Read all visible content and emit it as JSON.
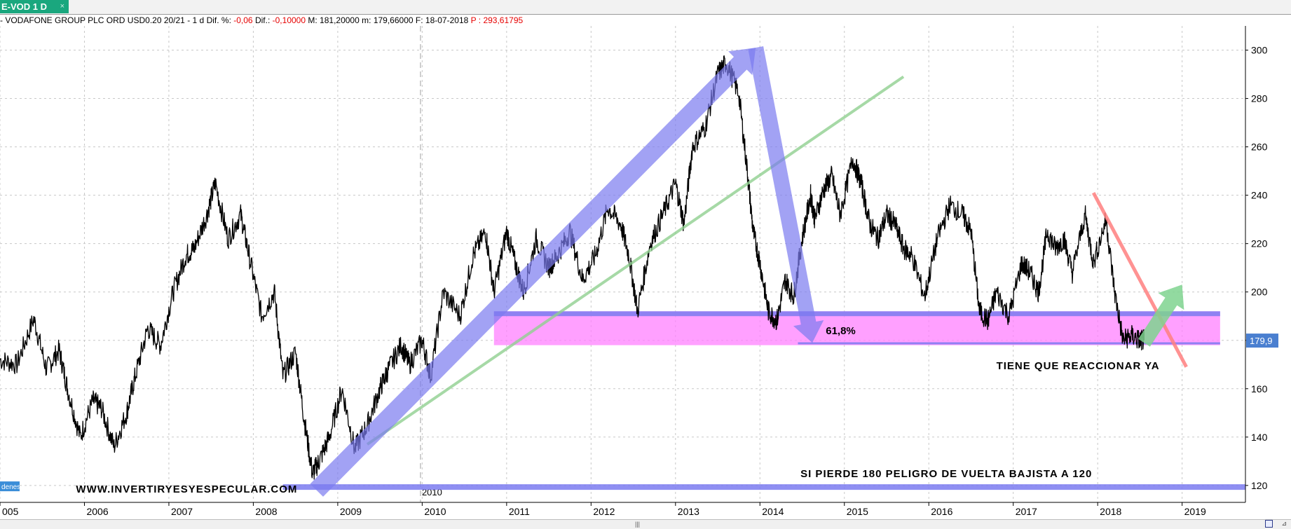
{
  "tab": {
    "label": "E-VOD 1 D",
    "close_glyph": "×"
  },
  "info": {
    "prefix": "- VODAFONE GROUP PLC ORD USD0.20 20/21 -  1 d",
    "dif_pct_label": "Dif. %:",
    "dif_pct_value": "-0,06",
    "dif_label": "Dif.:",
    "dif_value": "-0,10000",
    "max_label": "M:",
    "max_value": "181,20000",
    "min_label": "m:",
    "min_value": "179,66000",
    "date_label": "F:",
    "date_value": "18-07-2018",
    "p_label": "P :",
    "p_value": "293,61795"
  },
  "colors": {
    "price": "#000000",
    "blue_band": "#7b7bf0",
    "pink_zone": "#ff80ff",
    "green_line": "#90d090",
    "red_line": "#ff8080",
    "green_arrow": "#7fd48f",
    "grid": "#c8c8c8",
    "last_price_box": "#4a7fd0",
    "left_tag": "#3b8ed8"
  },
  "chart_data": {
    "type": "line",
    "title": "",
    "xlabel": "",
    "ylabel": "",
    "x_ticks": [
      "005",
      "2006",
      "2007",
      "2008",
      "2009",
      "2010",
      "2011",
      "2012",
      "2013",
      "2014",
      "2015",
      "2016",
      "2017",
      "2018",
      "2019"
    ],
    "y_ticks": [
      120,
      140,
      160,
      180,
      200,
      220,
      240,
      260,
      280,
      300
    ],
    "ylim": [
      113,
      310
    ],
    "xlim": [
      2005.0,
      2019.75
    ],
    "grid": true,
    "last_price_label": "179,9",
    "last_price": 179.9,
    "period_marker": {
      "x": 2009.98,
      "label": "2010"
    },
    "series": [
      {
        "x": [
          2005.0,
          2005.2,
          2005.4,
          2005.55,
          2005.7,
          2005.8,
          2005.95,
          2006.1,
          2006.2,
          2006.35,
          2006.5,
          2006.6,
          2006.75,
          2006.9,
          2007.05,
          2007.2,
          2007.3,
          2007.45,
          2007.55,
          2007.7,
          2007.85,
          2007.95,
          2008.1,
          2008.25,
          2008.35,
          2008.5,
          2008.6,
          2008.7,
          2008.78,
          2008.9,
          2009.05,
          2009.2,
          2009.35,
          2009.5,
          2009.6,
          2009.75,
          2009.85,
          2010.0,
          2010.1,
          2010.25,
          2010.45,
          2010.6,
          2010.75,
          2010.85,
          2011.0,
          2011.1,
          2011.2,
          2011.35,
          2011.5,
          2011.6,
          2011.75,
          2011.9,
          2012.05,
          2012.2,
          2012.35,
          2012.45,
          2012.55,
          2012.7,
          2012.85,
          2013.0,
          2013.1,
          2013.2,
          2013.35,
          2013.5,
          2013.6,
          2013.75,
          2013.85,
          2013.92,
          2014.0,
          2014.1,
          2014.2,
          2014.3,
          2014.4,
          2014.5,
          2014.6,
          2014.65,
          2014.75,
          2014.85,
          2014.95,
          2015.1,
          2015.2,
          2015.3,
          2015.4,
          2015.5,
          2015.6,
          2015.7,
          2015.8,
          2015.95,
          2016.1,
          2016.25,
          2016.4,
          2016.5,
          2016.6,
          2016.7,
          2016.8,
          2016.95,
          2017.1,
          2017.2,
          2017.3,
          2017.4,
          2017.5,
          2017.6,
          2017.7,
          2017.85,
          2017.95,
          2018.1,
          2018.2,
          2018.3,
          2018.4,
          2018.5,
          2018.55
        ],
        "y": [
          172,
          170,
          189,
          168,
          176,
          160,
          140,
          155,
          152,
          136,
          150,
          165,
          185,
          178,
          200,
          215,
          218,
          232,
          245,
          222,
          232,
          215,
          190,
          200,
          165,
          175,
          148,
          125,
          130,
          140,
          160,
          135,
          145,
          160,
          168,
          178,
          170,
          180,
          165,
          200,
          190,
          215,
          225,
          200,
          225,
          212,
          200,
          222,
          210,
          215,
          225,
          205,
          215,
          235,
          228,
          215,
          192,
          220,
          232,
          245,
          228,
          260,
          268,
          290,
          295,
          282,
          250,
          225,
          212,
          192,
          188,
          205,
          198,
          222,
          240,
          230,
          242,
          248,
          232,
          255,
          245,
          228,
          222,
          232,
          228,
          218,
          215,
          198,
          222,
          236,
          232,
          225,
          192,
          188,
          200,
          190,
          212,
          208,
          200,
          225,
          218,
          222,
          208,
          232,
          212,
          230,
          200,
          180,
          182,
          179.9,
          180
        ],
        "stroke": "#000000"
      }
    ]
  },
  "annotations": {
    "fib_label": "61,8%",
    "react_label": "TIENE QUE REACCIONAR YA",
    "danger_label": "SI PIERDE 180 PELIGRO DE VUELTA BAJISTA A 120",
    "watermark": "WWW.INVERTIRYESYESPECULAR.COM",
    "left_tag": "denes"
  },
  "footer": {
    "grip": "|||"
  }
}
